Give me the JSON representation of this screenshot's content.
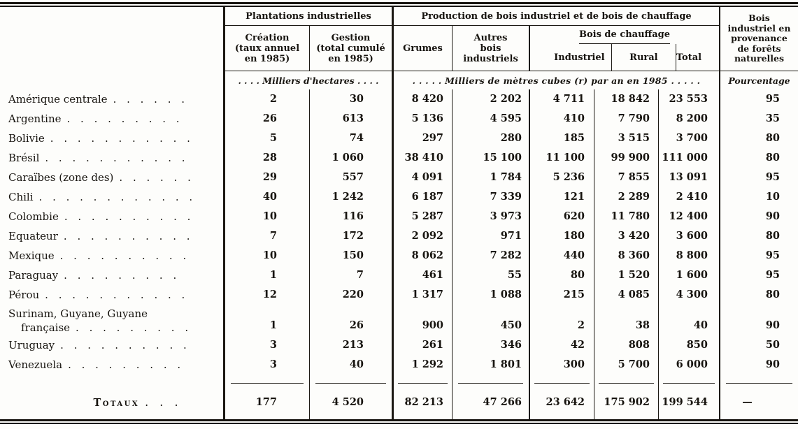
{
  "colors": {
    "ink": "#17140f",
    "paper": "#fdfdfb"
  },
  "table": {
    "header": {
      "plantations": "Plantations industrielles",
      "creation": "Création\n(taux annuel\nen 1985)",
      "gestion": "Gestion\n(total cumulé\nen 1985)",
      "production": "Production de bois industriel et de bois de chauffage",
      "grumes": "Grumes",
      "autres_bois": "Autres\nbois\nindustriels",
      "bois_chauffage": "Bois de chauffage",
      "industriel": "Industriel",
      "rural": "Rural",
      "total": "Total",
      "bois_naturelles": "Bois\nindustriel en\nprovenance\nde forêts\nnaturelles"
    },
    "units": {
      "hectares": ". . . .  Milliers d'hectares  . . . .",
      "metres_cubes": ". . . . .  Milliers de mètres cubes (r) par an en 1985  . . . . .",
      "pourcentage": "Pourcentage"
    },
    "rows": [
      {
        "label": "Amérique centrale",
        "dots": ". . . . . .",
        "values": [
          "2",
          "30",
          "8 420",
          "2 202",
          "4 711",
          "18 842",
          "23 553",
          "95"
        ]
      },
      {
        "label": "Argentine",
        "dots": ". . . . . . . . .",
        "values": [
          "26",
          "613",
          "5 136",
          "4 595",
          "410",
          "7 790",
          "8 200",
          "35"
        ]
      },
      {
        "label": "Bolivie",
        "dots": ". . . . . . . . . . .",
        "values": [
          "5",
          "74",
          "297",
          "280",
          "185",
          "3 515",
          "3 700",
          "80"
        ]
      },
      {
        "label": "Brésil",
        "dots": ". . . . . . . . . . .",
        "values": [
          "28",
          "1 060",
          "38 410",
          "15 100",
          "11 100",
          "99 900",
          "111 000",
          "80"
        ]
      },
      {
        "label": "Caraïbes (zone des)",
        "dots": ". . . . . .",
        "values": [
          "29",
          "557",
          "4 091",
          "1 784",
          "5 236",
          "7 855",
          "13 091",
          "95"
        ]
      },
      {
        "label": "Chili",
        "dots": ". . . . . . . . . . . .",
        "values": [
          "40",
          "1 242",
          "6 187",
          "7 339",
          "121",
          "2 289",
          "2 410",
          "10"
        ]
      },
      {
        "label": "Colombie",
        "dots": ". . . . . . . . . .",
        "values": [
          "10",
          "116",
          "5 287",
          "3 973",
          "620",
          "11 780",
          "12 400",
          "90"
        ]
      },
      {
        "label": "Equateur",
        "dots": ". . . . . . . . . .",
        "values": [
          "7",
          "172",
          "2 092",
          "971",
          "180",
          "3 420",
          "3 600",
          "80"
        ]
      },
      {
        "label": "Mexique",
        "dots": ". . . . . . . . . .",
        "values": [
          "10",
          "150",
          "8 062",
          "7 282",
          "440",
          "8 360",
          "8 800",
          "95"
        ]
      },
      {
        "label": "Paraguay",
        "dots": ". . . . . . . . .",
        "values": [
          "1",
          "7",
          "461",
          "55",
          "80",
          "1 520",
          "1 600",
          "95"
        ]
      },
      {
        "label": "Pérou",
        "dots": ". . . . . . . . . . .",
        "values": [
          "12",
          "220",
          "1 317",
          "1 088",
          "215",
          "4 085",
          "4 300",
          "80"
        ]
      },
      {
        "label": "Surinam,  Guyane,  Guyane\nfrançaise",
        "dots": ". . . . . . . . .",
        "values": [
          "1",
          "26",
          "900",
          "450",
          "2",
          "38",
          "40",
          "90"
        ]
      },
      {
        "label": "Uruguay",
        "dots": ". . . . . . . . . .",
        "values": [
          "3",
          "213",
          "261",
          "346",
          "42",
          "808",
          "850",
          "50"
        ]
      },
      {
        "label": "Venezuela",
        "dots": ". . . . . . . . .",
        "values": [
          "3",
          "40",
          "1 292",
          "1 801",
          "300",
          "5 700",
          "6 000",
          "90"
        ]
      }
    ],
    "totals": {
      "label": "Totaux",
      "dots": ". . .",
      "values": [
        "177",
        "4 520",
        "82 213",
        "47 266",
        "23 642",
        "175 902",
        "199 544",
        "—"
      ]
    }
  }
}
